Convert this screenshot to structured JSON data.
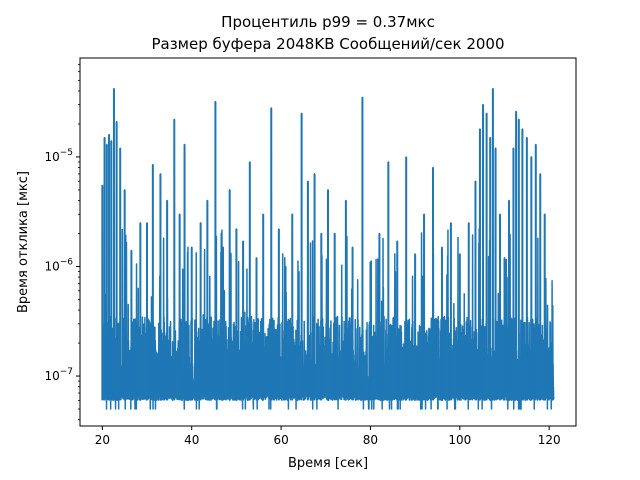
{
  "chart_data": {
    "type": "line",
    "title_line1": "Процентиль p99 = 0.37мкс",
    "title_line2": "Размер буфера 2048KB Сообщений/сек 2000",
    "xlabel": "Время [сек]",
    "ylabel": "Время отклика [мкс]",
    "xlim": [
      15,
      126
    ],
    "ylim": [
      3.5e-08,
      8e-05
    ],
    "yscale": "log",
    "grid": false,
    "xticks": [
      {
        "value": 20,
        "label": "20"
      },
      {
        "value": 40,
        "label": "40"
      },
      {
        "value": 60,
        "label": "60"
      },
      {
        "value": 80,
        "label": "80"
      },
      {
        "value": 100,
        "label": "100"
      },
      {
        "value": 120,
        "label": "120"
      }
    ],
    "yticks": [
      {
        "value": 1e-07,
        "base": "10",
        "exp": "−7"
      },
      {
        "value": 1e-06,
        "base": "10",
        "exp": "−6"
      },
      {
        "value": 1e-05,
        "base": "10",
        "exp": "−5"
      }
    ],
    "series": [
      {
        "color": "#1f77b4",
        "x_start": 20,
        "x_end": 121,
        "baseline": 6e-08,
        "band_top_typical": 3.5e-07,
        "floor_min": 5e-08,
        "spikes": [
          {
            "x": 20.0,
            "y": 5.5e-06
          },
          {
            "x": 20.5,
            "y": 1.5e-05
          },
          {
            "x": 21.0,
            "y": 1.3e-05
          },
          {
            "x": 21.5,
            "y": 1.6e-05
          },
          {
            "x": 22.0,
            "y": 1.4e-05
          },
          {
            "x": 22.6,
            "y": 4.2e-05
          },
          {
            "x": 23.2,
            "y": 2.1e-05
          },
          {
            "x": 24.0,
            "y": 1.2e-05
          },
          {
            "x": 25.0,
            "y": 5e-06
          },
          {
            "x": 26.5,
            "y": 1.4e-06
          },
          {
            "x": 28.5,
            "y": 2.5e-06
          },
          {
            "x": 30.0,
            "y": 2.5e-06
          },
          {
            "x": 31.3,
            "y": 8.5e-06
          },
          {
            "x": 33.0,
            "y": 7e-06
          },
          {
            "x": 34.5,
            "y": 4e-06
          },
          {
            "x": 36.1,
            "y": 2.2e-05
          },
          {
            "x": 37.3,
            "y": 3e-06
          },
          {
            "x": 38.4,
            "y": 1.3e-05
          },
          {
            "x": 40.0,
            "y": 1.5e-06
          },
          {
            "x": 42.0,
            "y": 2.5e-06
          },
          {
            "x": 43.5,
            "y": 4e-06
          },
          {
            "x": 45.3,
            "y": 3.2e-05
          },
          {
            "x": 47.0,
            "y": 1.5e-06
          },
          {
            "x": 48.5,
            "y": 5e-06
          },
          {
            "x": 50.0,
            "y": 2.2e-06
          },
          {
            "x": 51.5,
            "y": 1.7e-06
          },
          {
            "x": 53.0,
            "y": 9e-06
          },
          {
            "x": 54.5,
            "y": 1.2e-06
          },
          {
            "x": 56.0,
            "y": 3e-06
          },
          {
            "x": 57.8,
            "y": 2.8e-05
          },
          {
            "x": 59.5,
            "y": 2.2e-06
          },
          {
            "x": 61.0,
            "y": 1e-06
          },
          {
            "x": 62.5,
            "y": 3e-06
          },
          {
            "x": 64.6,
            "y": 2.5e-05
          },
          {
            "x": 66.0,
            "y": 6e-06
          },
          {
            "x": 67.5,
            "y": 7e-06
          },
          {
            "x": 69.0,
            "y": 2e-06
          },
          {
            "x": 70.5,
            "y": 5e-06
          },
          {
            "x": 72.0,
            "y": 2e-06
          },
          {
            "x": 74.5,
            "y": 4e-06
          },
          {
            "x": 76.0,
            "y": 1.5e-06
          },
          {
            "x": 78.2,
            "y": 3.5e-05
          },
          {
            "x": 80.0,
            "y": 1.1e-06
          },
          {
            "x": 82.0,
            "y": 2e-06
          },
          {
            "x": 84.0,
            "y": 9e-06
          },
          {
            "x": 86.0,
            "y": 1.7e-06
          },
          {
            "x": 88.0,
            "y": 1e-05
          },
          {
            "x": 90.0,
            "y": 1.3e-06
          },
          {
            "x": 92.0,
            "y": 3e-06
          },
          {
            "x": 94.0,
            "y": 8e-06
          },
          {
            "x": 96.0,
            "y": 1.5e-06
          },
          {
            "x": 98.0,
            "y": 2.5e-06
          },
          {
            "x": 100.0,
            "y": 1.3e-06
          },
          {
            "x": 102.0,
            "y": 2.5e-06
          },
          {
            "x": 103.5,
            "y": 6e-06
          },
          {
            "x": 104.5,
            "y": 1.8e-05
          },
          {
            "x": 105.2,
            "y": 3e-05
          },
          {
            "x": 106.0,
            "y": 2.5e-05
          },
          {
            "x": 106.8,
            "y": 1.5e-05
          },
          {
            "x": 107.4,
            "y": 4.2e-05
          },
          {
            "x": 108.0,
            "y": 1.2e-05
          },
          {
            "x": 109.0,
            "y": 3e-06
          },
          {
            "x": 110.0,
            "y": 1.2e-06
          },
          {
            "x": 111.0,
            "y": 4e-06
          },
          {
            "x": 112.0,
            "y": 1.2e-05
          },
          {
            "x": 112.6,
            "y": 2.6e-05
          },
          {
            "x": 113.2,
            "y": 2.2e-05
          },
          {
            "x": 114.0,
            "y": 1.8e-05
          },
          {
            "x": 115.0,
            "y": 1.5e-05
          },
          {
            "x": 116.0,
            "y": 1e-05
          },
          {
            "x": 117.0,
            "y": 1.3e-05
          },
          {
            "x": 118.0,
            "y": 7e-06
          },
          {
            "x": 119.0,
            "y": 3e-06
          },
          {
            "x": 120.5,
            "y": 2e-07
          }
        ]
      }
    ]
  }
}
